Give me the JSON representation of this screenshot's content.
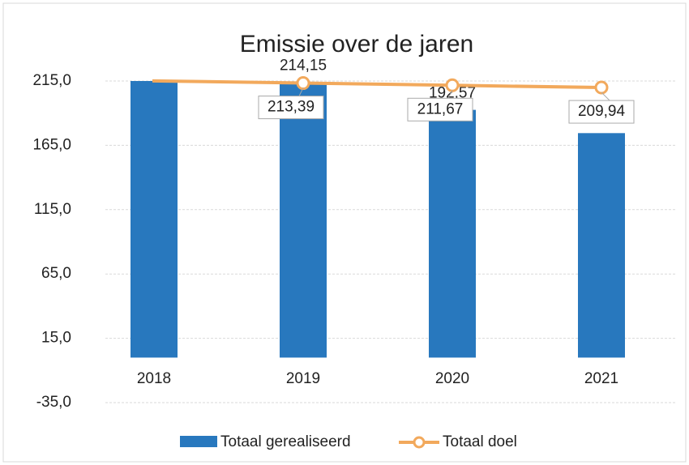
{
  "chart_data": {
    "type": "bar-line",
    "title": "Emissie over de jaren",
    "categories": [
      "2018",
      "2019",
      "2020",
      "2021"
    ],
    "series": [
      {
        "name": "Totaal gerealiseerd",
        "type": "bar",
        "color": "#2878be",
        "values": [
          215,
          214.15,
          192.57,
          174.5
        ],
        "value_labels": [
          null,
          "214,15",
          "192,57",
          null
        ]
      },
      {
        "name": "Totaal doel",
        "type": "line",
        "color": "#f2a95c",
        "values": [
          215.11,
          213.39,
          211.67,
          209.94
        ],
        "value_labels": [
          null,
          "213,39",
          "211,67",
          "209,94"
        ]
      }
    ],
    "ylim": [
      -35,
      215
    ],
    "yticks": [
      {
        "value": -35,
        "label": "-35,0"
      },
      {
        "value": 15,
        "label": "15,0"
      },
      {
        "value": 65,
        "label": "65,0"
      },
      {
        "value": 115,
        "label": "115,0"
      },
      {
        "value": 165,
        "label": "165,0"
      },
      {
        "value": 215,
        "label": "215,0"
      }
    ],
    "grid": true
  }
}
